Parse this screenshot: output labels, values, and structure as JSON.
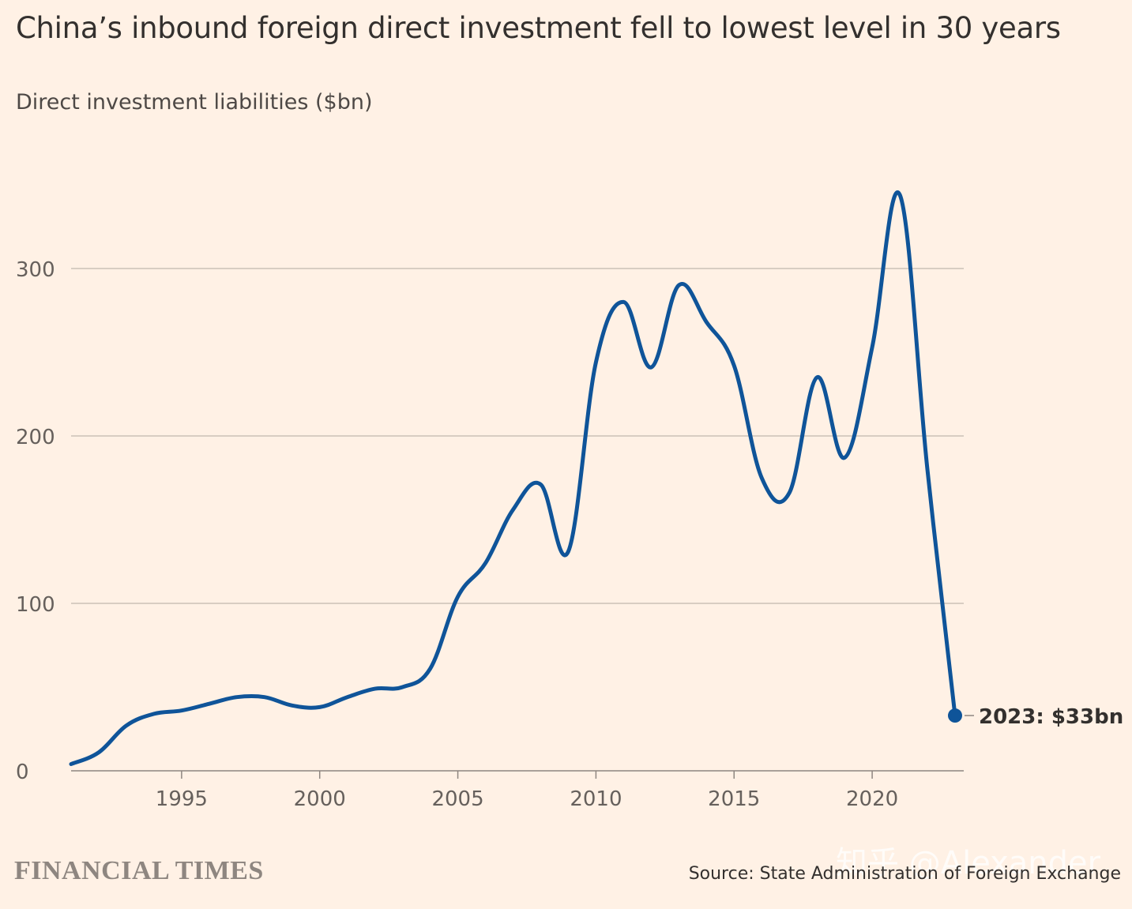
{
  "title": "China’s inbound foreign direct investment fell to lowest level in 30 years",
  "subtitle": "Direct investment liabilities ($bn)",
  "brand": "FINANCIAL TIMES",
  "source": "Source: State Administration of Foreign Exchange",
  "watermark": "知乎 @Alexander",
  "colors": {
    "background": "#fff1e5",
    "line": "#0f5499",
    "grid": "#ccc1b7",
    "text": "#33302e"
  },
  "chart_data": {
    "type": "line",
    "title": "China’s inbound foreign direct investment fell to lowest level in 30 years",
    "ylabel": "Direct investment liabilities ($bn)",
    "xlabel": "",
    "xlim": [
      1991,
      2023
    ],
    "ylim": [
      0,
      350
    ],
    "yticks": [
      0,
      100,
      200,
      300
    ],
    "xticks": [
      1995,
      2000,
      2005,
      2010,
      2015,
      2020
    ],
    "grid": true,
    "series": [
      {
        "x": [
          1991,
          1992,
          1993,
          1994,
          1995,
          1996,
          1997,
          1998,
          1999,
          2000,
          2001,
          2002,
          2003,
          2004,
          2005,
          2006,
          2007,
          2008,
          2009,
          2010,
          2011,
          2012,
          2013,
          2014,
          2015,
          2016,
          2017,
          2018,
          2019,
          2020,
          2021,
          2022,
          2023
        ],
        "values": [
          4,
          11,
          27,
          34,
          36,
          40,
          44,
          44,
          39,
          38,
          44,
          49,
          50,
          61,
          104,
          124,
          156,
          171,
          131,
          244,
          280,
          241,
          290,
          268,
          242,
          175,
          166,
          235,
          187,
          253,
          344,
          180,
          33
        ]
      }
    ],
    "annotations": [
      {
        "x": 2023,
        "y": 33,
        "text": "2023: $33bn"
      }
    ]
  }
}
